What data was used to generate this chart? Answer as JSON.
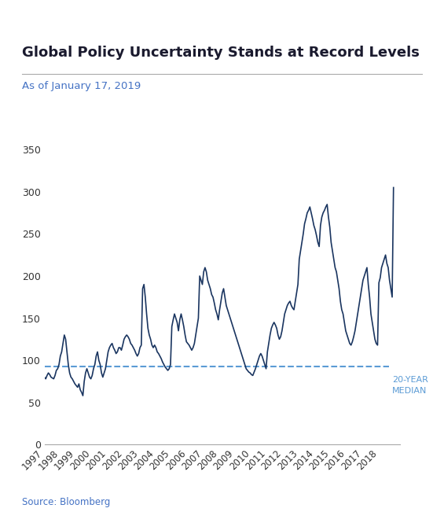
{
  "title": "Global Policy Uncertainty Stands at Record Levels",
  "subtitle": "As of January 17, 2019",
  "source": "Source: Bloomberg",
  "line_color": "#1a3560",
  "median_color": "#5b9bd5",
  "median_value": 93,
  "median_label": "20-YEAR\nMEDIAN",
  "ylim": [
    0,
    360
  ],
  "yticks": [
    0,
    50,
    100,
    150,
    200,
    250,
    300,
    350
  ],
  "title_color": "#1a1a2e",
  "subtitle_color": "#4472c4",
  "source_color": "#4472c4",
  "background_color": "#ffffff",
  "values": [
    80,
    78,
    82,
    85,
    83,
    80,
    79,
    78,
    82,
    88,
    90,
    95,
    105,
    110,
    120,
    130,
    125,
    110,
    95,
    85,
    80,
    78,
    75,
    72,
    70,
    68,
    72,
    65,
    62,
    58,
    75,
    85,
    90,
    85,
    80,
    78,
    82,
    90,
    95,
    105,
    110,
    100,
    95,
    85,
    80,
    85,
    90,
    100,
    110,
    115,
    118,
    120,
    115,
    112,
    108,
    110,
    115,
    115,
    112,
    118,
    125,
    128,
    130,
    128,
    125,
    120,
    118,
    115,
    112,
    108,
    105,
    108,
    115,
    118,
    185,
    190,
    175,
    155,
    138,
    130,
    125,
    118,
    115,
    118,
    115,
    110,
    108,
    105,
    102,
    98,
    95,
    92,
    90,
    88,
    90,
    95,
    140,
    148,
    155,
    150,
    145,
    135,
    148,
    155,
    148,
    140,
    130,
    122,
    120,
    118,
    115,
    112,
    115,
    120,
    130,
    140,
    150,
    200,
    195,
    190,
    205,
    210,
    205,
    195,
    190,
    185,
    178,
    175,
    168,
    160,
    155,
    148,
    160,
    170,
    180,
    185,
    175,
    165,
    160,
    155,
    150,
    145,
    140,
    135,
    130,
    125,
    120,
    115,
    110,
    105,
    100,
    95,
    90,
    88,
    86,
    85,
    83,
    82,
    86,
    90,
    95,
    100,
    105,
    108,
    105,
    100,
    95,
    90,
    110,
    120,
    130,
    138,
    142,
    145,
    142,
    138,
    130,
    125,
    128,
    135,
    145,
    155,
    160,
    165,
    168,
    170,
    165,
    162,
    160,
    170,
    180,
    190,
    220,
    230,
    240,
    250,
    262,
    268,
    275,
    278,
    282,
    275,
    268,
    260,
    255,
    248,
    240,
    235,
    260,
    270,
    275,
    278,
    282,
    285,
    270,
    258,
    240,
    230,
    220,
    210,
    205,
    195,
    185,
    170,
    160,
    155,
    145,
    135,
    130,
    125,
    120,
    118,
    122,
    128,
    135,
    145,
    155,
    165,
    175,
    185,
    195,
    200,
    205,
    210,
    190,
    175,
    155,
    145,
    135,
    125,
    120,
    118,
    192,
    198,
    210,
    215,
    220,
    225,
    215,
    210,
    195,
    185,
    175,
    305
  ]
}
